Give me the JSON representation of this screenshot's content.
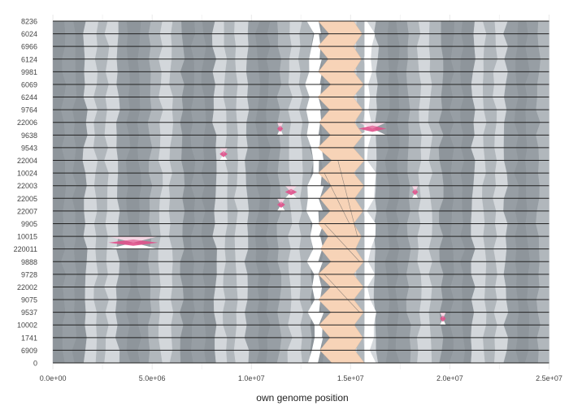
{
  "chart_data": {
    "type": "synteny-ribbon",
    "title": "",
    "xlabel": "own genome position",
    "ylabel": "",
    "xlim": [
      -700000,
      25800000
    ],
    "x_ticks": [
      {
        "value": 0,
        "label": "0.0e+00"
      },
      {
        "value": 5000000,
        "label": "5.0e+06"
      },
      {
        "value": 10000000,
        "label": "1.0e+07"
      },
      {
        "value": 15000000,
        "label": "1.5e+07"
      },
      {
        "value": 20000000,
        "label": "2.0e+07"
      },
      {
        "value": 25000000,
        "label": "2.5e+07"
      }
    ],
    "rows": [
      "8236",
      "6024",
      "6966",
      "6124",
      "9981",
      "6069",
      "6244",
      "9764",
      "22006",
      "9638",
      "9543",
      "22004",
      "10024",
      "22003",
      "22005",
      "22007",
      "9905",
      "10015",
      "220011",
      "9888",
      "9728",
      "22002",
      "9075",
      "9537",
      "10002",
      "1741",
      "6909",
      "0"
    ],
    "genome_extent": [
      0,
      25000000
    ],
    "grid": true,
    "colors": {
      "band_palette": [
        "#8e959b",
        "#a3a9af",
        "#bcc2c7",
        "#d3d7db",
        "#e6e9ec",
        "#a9aeb4",
        "#979ea4",
        "#c5cacf",
        "#dde1e4",
        "#b1b7bc",
        "#cfd4d8",
        "#8a9197"
      ],
      "centromere": "#f7d3b7",
      "inversion": "#e0518b",
      "inversion_light": "#e8a6c4",
      "row_line": "#222222",
      "grid": "#e9e9e9",
      "gap": "#ffffff"
    },
    "centromere_region": [
      13500000,
      15700000
    ],
    "inversions": [
      {
        "rows": [
          "10015",
          "220011"
        ],
        "start": 2800000,
        "end": 5300000
      },
      {
        "rows": [
          "22006",
          "9638"
        ],
        "start": 11300000,
        "end": 11600000
      },
      {
        "rows": [
          "22006",
          "9638"
        ],
        "start": 15400000,
        "end": 16800000
      },
      {
        "rows": [
          "9543",
          "22004"
        ],
        "start": 8400000,
        "end": 8800000
      },
      {
        "rows": [
          "22003",
          "22005"
        ],
        "start": 11700000,
        "end": 12300000
      },
      {
        "rows": [
          "22005",
          "22007"
        ],
        "start": 11300000,
        "end": 11700000
      },
      {
        "rows": [
          "22003",
          "22005"
        ],
        "start": 18100000,
        "end": 18400000
      },
      {
        "rows": [
          "9537",
          "10002"
        ],
        "start": 19500000,
        "end": 19800000
      }
    ]
  }
}
